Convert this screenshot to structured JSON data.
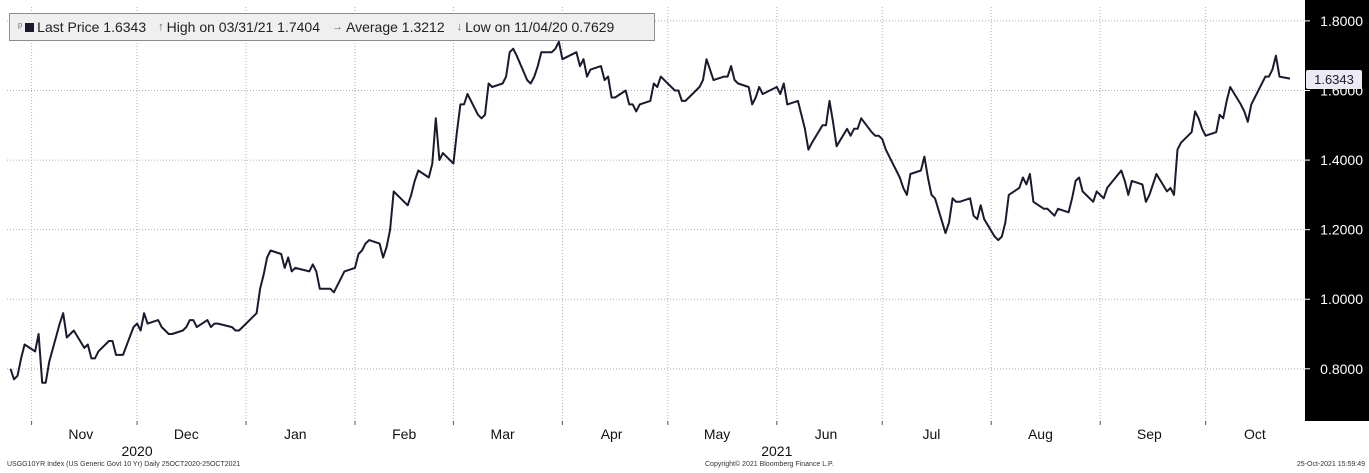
{
  "legend": {
    "last_price": "Last Price 1.6343",
    "high": "High on 03/31/21 1.7404",
    "average": "Average 1.3212",
    "low": "Low on 11/04/20 0.7629"
  },
  "price_tag": "1.6343",
  "footer": {
    "left": "USGG10YR Index (US Generic Govt 10 Yr)  Daily 25OCT2020-25OCT2021",
    "center": "Copyright© 2021 Bloomberg Finance L.P.",
    "right": "25-Oct-2021 15:59:49"
  },
  "colors": {
    "line": "#1a1a2e",
    "axis_panel": "#000000",
    "grid": "#b0b0b0"
  },
  "chart_data": {
    "type": "line",
    "ylim": [
      0.65,
      1.84
    ],
    "y_ticks": [
      "0.8000",
      "1.0000",
      "1.2000",
      "1.4000",
      "1.6000",
      "1.8000"
    ],
    "x_month_labels": [
      "Oct",
      "Nov",
      "Dec",
      "Jan",
      "Feb",
      "Mar",
      "Apr",
      "May",
      "Jun",
      "Jul",
      "Aug",
      "Sep",
      "Oct"
    ],
    "x_year_labels": [
      "2020",
      "2021"
    ],
    "grid": true,
    "legend_position": "top-left",
    "x_range": [
      "2020-10-25",
      "2021-10-25"
    ],
    "series": [
      {
        "points": [
          [
            "2020-10-26",
            0.8
          ],
          [
            "2020-10-27",
            0.77
          ],
          [
            "2020-10-28",
            0.78
          ],
          [
            "2020-10-29",
            0.83
          ],
          [
            "2020-10-30",
            0.87
          ],
          [
            "2020-11-02",
            0.85
          ],
          [
            "2020-11-03",
            0.9
          ],
          [
            "2020-11-04",
            0.76
          ],
          [
            "2020-11-05",
            0.76
          ],
          [
            "2020-11-06",
            0.82
          ],
          [
            "2020-11-09",
            0.93
          ],
          [
            "2020-11-10",
            0.96
          ],
          [
            "2020-11-11",
            0.89
          ],
          [
            "2020-11-12",
            0.9
          ],
          [
            "2020-11-13",
            0.91
          ],
          [
            "2020-11-16",
            0.86
          ],
          [
            "2020-11-17",
            0.87
          ],
          [
            "2020-11-18",
            0.83
          ],
          [
            "2020-11-19",
            0.83
          ],
          [
            "2020-11-20",
            0.85
          ],
          [
            "2020-11-23",
            0.88
          ],
          [
            "2020-11-24",
            0.88
          ],
          [
            "2020-11-25",
            0.84
          ],
          [
            "2020-11-27",
            0.84
          ],
          [
            "2020-11-30",
            0.92
          ],
          [
            "2020-12-01",
            0.93
          ],
          [
            "2020-12-02",
            0.91
          ],
          [
            "2020-12-03",
            0.96
          ],
          [
            "2020-12-04",
            0.93
          ],
          [
            "2020-12-07",
            0.94
          ],
          [
            "2020-12-08",
            0.92
          ],
          [
            "2020-12-09",
            0.91
          ],
          [
            "2020-12-10",
            0.9
          ],
          [
            "2020-12-11",
            0.9
          ],
          [
            "2020-12-14",
            0.91
          ],
          [
            "2020-12-15",
            0.92
          ],
          [
            "2020-12-16",
            0.94
          ],
          [
            "2020-12-17",
            0.94
          ],
          [
            "2020-12-18",
            0.92
          ],
          [
            "2020-12-21",
            0.94
          ],
          [
            "2020-12-22",
            0.92
          ],
          [
            "2020-12-23",
            0.93
          ],
          [
            "2020-12-24",
            0.93
          ],
          [
            "2020-12-28",
            0.92
          ],
          [
            "2020-12-29",
            0.91
          ],
          [
            "2020-12-30",
            0.91
          ],
          [
            "2020-12-31",
            0.92
          ],
          [
            "2021-01-04",
            0.96
          ],
          [
            "2021-01-05",
            1.03
          ],
          [
            "2021-01-06",
            1.07
          ],
          [
            "2021-01-07",
            1.12
          ],
          [
            "2021-01-08",
            1.14
          ],
          [
            "2021-01-11",
            1.13
          ],
          [
            "2021-01-12",
            1.09
          ],
          [
            "2021-01-13",
            1.12
          ],
          [
            "2021-01-14",
            1.08
          ],
          [
            "2021-01-15",
            1.09
          ],
          [
            "2021-01-19",
            1.08
          ],
          [
            "2021-01-20",
            1.1
          ],
          [
            "2021-01-21",
            1.08
          ],
          [
            "2021-01-22",
            1.03
          ],
          [
            "2021-01-25",
            1.03
          ],
          [
            "2021-01-26",
            1.02
          ],
          [
            "2021-01-27",
            1.04
          ],
          [
            "2021-01-28",
            1.06
          ],
          [
            "2021-01-29",
            1.08
          ],
          [
            "2021-02-01",
            1.09
          ],
          [
            "2021-02-02",
            1.13
          ],
          [
            "2021-02-03",
            1.14
          ],
          [
            "2021-02-04",
            1.16
          ],
          [
            "2021-02-05",
            1.17
          ],
          [
            "2021-02-08",
            1.16
          ],
          [
            "2021-02-09",
            1.12
          ],
          [
            "2021-02-10",
            1.15
          ],
          [
            "2021-02-11",
            1.2
          ],
          [
            "2021-02-12",
            1.31
          ],
          [
            "2021-02-16",
            1.27
          ],
          [
            "2021-02-17",
            1.3
          ],
          [
            "2021-02-18",
            1.34
          ],
          [
            "2021-02-19",
            1.37
          ],
          [
            "2021-02-22",
            1.35
          ],
          [
            "2021-02-23",
            1.39
          ],
          [
            "2021-02-24",
            1.52
          ],
          [
            "2021-02-25",
            1.4
          ],
          [
            "2021-02-26",
            1.42
          ],
          [
            "2021-03-01",
            1.39
          ],
          [
            "2021-03-02",
            1.48
          ],
          [
            "2021-03-03",
            1.56
          ],
          [
            "2021-03-04",
            1.56
          ],
          [
            "2021-03-05",
            1.59
          ],
          [
            "2021-03-08",
            1.53
          ],
          [
            "2021-03-09",
            1.52
          ],
          [
            "2021-03-10",
            1.53
          ],
          [
            "2021-03-11",
            1.62
          ],
          [
            "2021-03-12",
            1.61
          ],
          [
            "2021-03-15",
            1.62
          ],
          [
            "2021-03-16",
            1.64
          ],
          [
            "2021-03-17",
            1.71
          ],
          [
            "2021-03-18",
            1.72
          ],
          [
            "2021-03-19",
            1.7
          ],
          [
            "2021-03-22",
            1.63
          ],
          [
            "2021-03-23",
            1.62
          ],
          [
            "2021-03-24",
            1.64
          ],
          [
            "2021-03-25",
            1.67
          ],
          [
            "2021-03-26",
            1.71
          ],
          [
            "2021-03-29",
            1.71
          ],
          [
            "2021-03-30",
            1.72
          ],
          [
            "2021-03-31",
            1.74
          ],
          [
            "2021-04-01",
            1.69
          ],
          [
            "2021-04-05",
            1.71
          ],
          [
            "2021-04-06",
            1.67
          ],
          [
            "2021-04-07",
            1.69
          ],
          [
            "2021-04-08",
            1.64
          ],
          [
            "2021-04-09",
            1.66
          ],
          [
            "2021-04-12",
            1.67
          ],
          [
            "2021-04-13",
            1.63
          ],
          [
            "2021-04-14",
            1.64
          ],
          [
            "2021-04-15",
            1.58
          ],
          [
            "2021-04-16",
            1.58
          ],
          [
            "2021-04-19",
            1.6
          ],
          [
            "2021-04-20",
            1.56
          ],
          [
            "2021-04-21",
            1.56
          ],
          [
            "2021-04-22",
            1.54
          ],
          [
            "2021-04-23",
            1.56
          ],
          [
            "2021-04-26",
            1.57
          ],
          [
            "2021-04-27",
            1.62
          ],
          [
            "2021-04-28",
            1.61
          ],
          [
            "2021-04-29",
            1.64
          ],
          [
            "2021-04-30",
            1.63
          ],
          [
            "2021-05-03",
            1.6
          ],
          [
            "2021-05-04",
            1.6
          ],
          [
            "2021-05-05",
            1.57
          ],
          [
            "2021-05-06",
            1.57
          ],
          [
            "2021-05-07",
            1.58
          ],
          [
            "2021-05-10",
            1.61
          ],
          [
            "2021-05-11",
            1.63
          ],
          [
            "2021-05-12",
            1.69
          ],
          [
            "2021-05-13",
            1.66
          ],
          [
            "2021-05-14",
            1.63
          ],
          [
            "2021-05-17",
            1.64
          ],
          [
            "2021-05-18",
            1.64
          ],
          [
            "2021-05-19",
            1.67
          ],
          [
            "2021-05-20",
            1.63
          ],
          [
            "2021-05-21",
            1.62
          ],
          [
            "2021-05-24",
            1.61
          ],
          [
            "2021-05-25",
            1.56
          ],
          [
            "2021-05-26",
            1.58
          ],
          [
            "2021-05-27",
            1.61
          ],
          [
            "2021-05-28",
            1.59
          ],
          [
            "2021-06-01",
            1.61
          ],
          [
            "2021-06-02",
            1.59
          ],
          [
            "2021-06-03",
            1.62
          ],
          [
            "2021-06-04",
            1.56
          ],
          [
            "2021-06-07",
            1.57
          ],
          [
            "2021-06-08",
            1.53
          ],
          [
            "2021-06-09",
            1.49
          ],
          [
            "2021-06-10",
            1.43
          ],
          [
            "2021-06-11",
            1.45
          ],
          [
            "2021-06-14",
            1.5
          ],
          [
            "2021-06-15",
            1.5
          ],
          [
            "2021-06-16",
            1.57
          ],
          [
            "2021-06-17",
            1.51
          ],
          [
            "2021-06-18",
            1.44
          ],
          [
            "2021-06-21",
            1.49
          ],
          [
            "2021-06-22",
            1.47
          ],
          [
            "2021-06-23",
            1.49
          ],
          [
            "2021-06-24",
            1.49
          ],
          [
            "2021-06-25",
            1.52
          ],
          [
            "2021-06-28",
            1.48
          ],
          [
            "2021-06-29",
            1.47
          ],
          [
            "2021-06-30",
            1.47
          ],
          [
            "2021-07-01",
            1.46
          ],
          [
            "2021-07-02",
            1.43
          ],
          [
            "2021-07-06",
            1.35
          ],
          [
            "2021-07-07",
            1.32
          ],
          [
            "2021-07-08",
            1.3
          ],
          [
            "2021-07-09",
            1.36
          ],
          [
            "2021-07-12",
            1.37
          ],
          [
            "2021-07-13",
            1.41
          ],
          [
            "2021-07-14",
            1.35
          ],
          [
            "2021-07-15",
            1.3
          ],
          [
            "2021-07-16",
            1.29
          ],
          [
            "2021-07-19",
            1.19
          ],
          [
            "2021-07-20",
            1.22
          ],
          [
            "2021-07-21",
            1.29
          ],
          [
            "2021-07-22",
            1.28
          ],
          [
            "2021-07-23",
            1.28
          ],
          [
            "2021-07-26",
            1.29
          ],
          [
            "2021-07-27",
            1.24
          ],
          [
            "2021-07-28",
            1.23
          ],
          [
            "2021-07-29",
            1.27
          ],
          [
            "2021-07-30",
            1.23
          ],
          [
            "2021-08-02",
            1.18
          ],
          [
            "2021-08-03",
            1.17
          ],
          [
            "2021-08-04",
            1.18
          ],
          [
            "2021-08-05",
            1.22
          ],
          [
            "2021-08-06",
            1.3
          ],
          [
            "2021-08-09",
            1.32
          ],
          [
            "2021-08-10",
            1.35
          ],
          [
            "2021-08-11",
            1.33
          ],
          [
            "2021-08-12",
            1.36
          ],
          [
            "2021-08-13",
            1.28
          ],
          [
            "2021-08-16",
            1.26
          ],
          [
            "2021-08-17",
            1.26
          ],
          [
            "2021-08-18",
            1.25
          ],
          [
            "2021-08-19",
            1.24
          ],
          [
            "2021-08-20",
            1.26
          ],
          [
            "2021-08-23",
            1.25
          ],
          [
            "2021-08-24",
            1.29
          ],
          [
            "2021-08-25",
            1.34
          ],
          [
            "2021-08-26",
            1.35
          ],
          [
            "2021-08-27",
            1.31
          ],
          [
            "2021-08-30",
            1.28
          ],
          [
            "2021-08-31",
            1.31
          ],
          [
            "2021-09-01",
            1.3
          ],
          [
            "2021-09-02",
            1.29
          ],
          [
            "2021-09-03",
            1.32
          ],
          [
            "2021-09-07",
            1.37
          ],
          [
            "2021-09-08",
            1.34
          ],
          [
            "2021-09-09",
            1.3
          ],
          [
            "2021-09-10",
            1.34
          ],
          [
            "2021-09-13",
            1.33
          ],
          [
            "2021-09-14",
            1.28
          ],
          [
            "2021-09-15",
            1.3
          ],
          [
            "2021-09-16",
            1.33
          ],
          [
            "2021-09-17",
            1.36
          ],
          [
            "2021-09-20",
            1.31
          ],
          [
            "2021-09-21",
            1.32
          ],
          [
            "2021-09-22",
            1.3
          ],
          [
            "2021-09-23",
            1.43
          ],
          [
            "2021-09-24",
            1.45
          ],
          [
            "2021-09-27",
            1.48
          ],
          [
            "2021-09-28",
            1.54
          ],
          [
            "2021-09-29",
            1.52
          ],
          [
            "2021-09-30",
            1.49
          ],
          [
            "2021-10-01",
            1.47
          ],
          [
            "2021-10-04",
            1.48
          ],
          [
            "2021-10-05",
            1.53
          ],
          [
            "2021-10-06",
            1.52
          ],
          [
            "2021-10-07",
            1.57
          ],
          [
            "2021-10-08",
            1.61
          ],
          [
            "2021-10-11",
            1.56
          ],
          [
            "2021-10-12",
            1.54
          ],
          [
            "2021-10-13",
            1.51
          ],
          [
            "2021-10-14",
            1.56
          ],
          [
            "2021-10-15",
            1.58
          ],
          [
            "2021-10-18",
            1.64
          ],
          [
            "2021-10-19",
            1.64
          ],
          [
            "2021-10-20",
            1.66
          ],
          [
            "2021-10-21",
            1.7
          ],
          [
            "2021-10-22",
            1.64
          ],
          [
            "2021-10-25",
            1.6343
          ]
        ]
      }
    ]
  }
}
